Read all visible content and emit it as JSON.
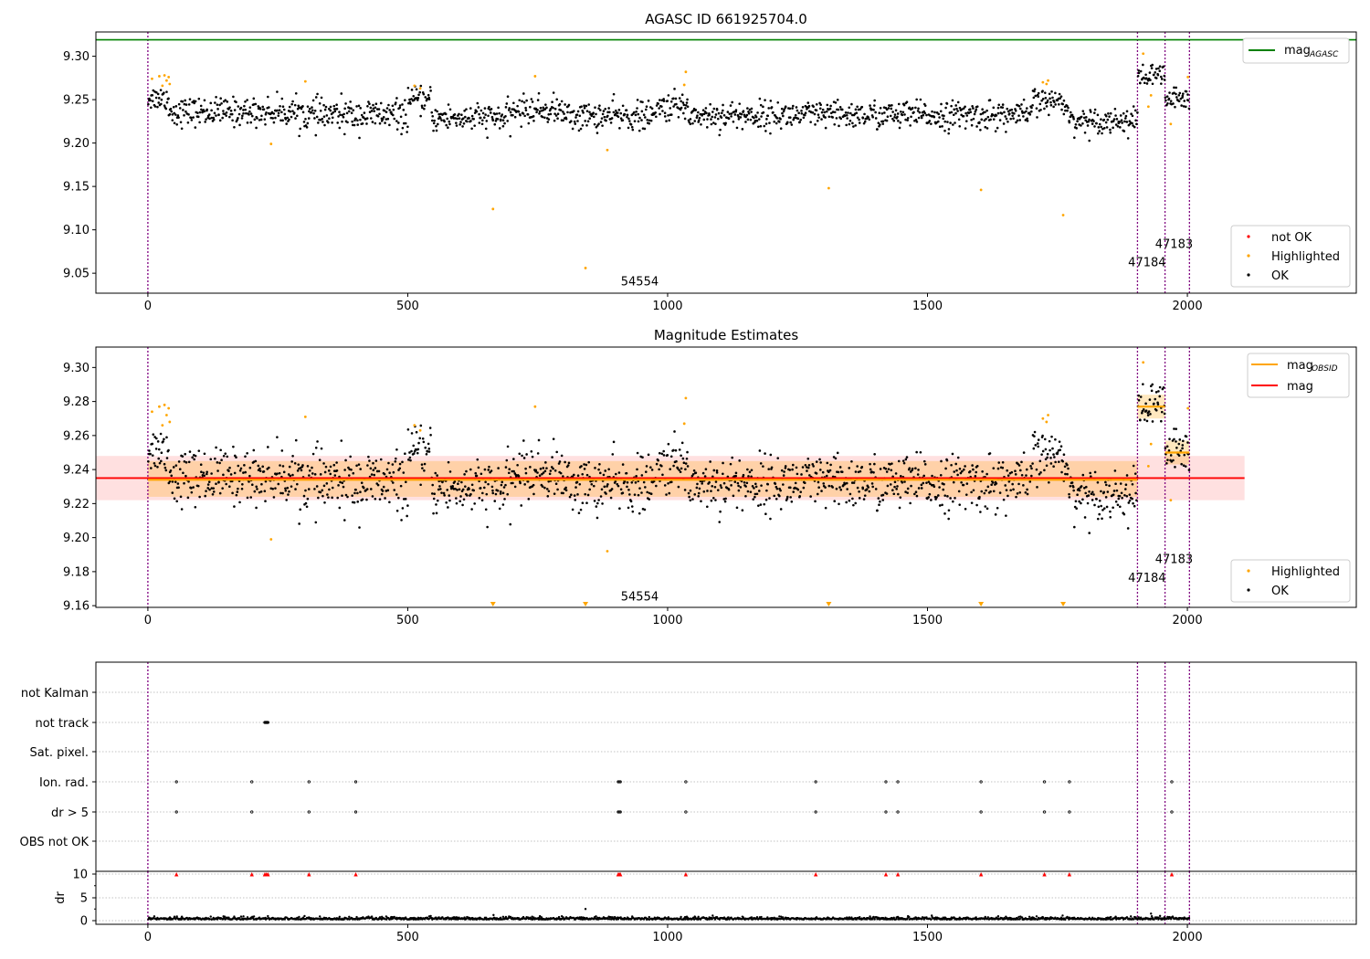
{
  "chart_data": [
    {
      "id": "panel-agasc",
      "type": "scatter",
      "title": "AGASC ID 661925704.0",
      "xlim": [
        -100,
        2325
      ],
      "ylim": [
        9.027,
        9.328
      ],
      "xticks": [
        0,
        500,
        1000,
        1500,
        2000
      ],
      "yticks": [
        9.05,
        9.1,
        9.15,
        9.2,
        9.25,
        9.3
      ],
      "ytick_labels": [
        "9.05",
        "9.10",
        "9.15",
        "9.20",
        "9.25",
        "9.30"
      ],
      "vlines": [
        0,
        1904,
        1957,
        2004
      ],
      "hline": {
        "y": 9.319,
        "color": "#008000",
        "legend": "mag",
        "legend_sub": "AGASC"
      },
      "annotations": [
        {
          "text": "54554",
          "x": 910,
          "y": 9.036
        },
        {
          "text": "47184",
          "x": 1886,
          "y": 9.058
        },
        {
          "text": "47183",
          "x": 1938,
          "y": 9.079
        }
      ],
      "legend": [
        {
          "label": "not OK",
          "color": "#ff0000"
        },
        {
          "label": "Highlighted",
          "color": "#ffa500"
        },
        {
          "label": "OK",
          "color": "#000000"
        }
      ],
      "segments": [
        {
          "x0": 0,
          "x1": 40,
          "mean": 9.252,
          "sd": 0.007
        },
        {
          "x0": 40,
          "x1": 300,
          "mean": 9.236,
          "sd": 0.008
        },
        {
          "x0": 300,
          "x1": 500,
          "mean": 9.232,
          "sd": 0.009
        },
        {
          "x0": 500,
          "x1": 545,
          "mean": 9.249,
          "sd": 0.007
        },
        {
          "x0": 545,
          "x1": 700,
          "mean": 9.229,
          "sd": 0.008
        },
        {
          "x0": 700,
          "x1": 800,
          "mean": 9.238,
          "sd": 0.008
        },
        {
          "x0": 800,
          "x1": 980,
          "mean": 9.231,
          "sd": 0.008
        },
        {
          "x0": 980,
          "x1": 1040,
          "mean": 9.242,
          "sd": 0.008
        },
        {
          "x0": 1040,
          "x1": 1700,
          "mean": 9.232,
          "sd": 0.008
        },
        {
          "x0": 1700,
          "x1": 1770,
          "mean": 9.248,
          "sd": 0.007
        },
        {
          "x0": 1770,
          "x1": 1904,
          "mean": 9.226,
          "sd": 0.007
        },
        {
          "x0": 1904,
          "x1": 1957,
          "mean": 9.277,
          "sd": 0.007
        },
        {
          "x0": 1957,
          "x1": 2004,
          "mean": 9.25,
          "sd": 0.007
        }
      ],
      "n_points": 1600,
      "highlighted": [
        [
          8,
          9.274
        ],
        [
          22,
          9.277
        ],
        [
          28,
          9.266
        ],
        [
          32,
          9.278
        ],
        [
          36,
          9.272
        ],
        [
          40,
          9.276
        ],
        [
          42,
          9.268
        ],
        [
          237,
          9.199
        ],
        [
          303,
          9.271
        ],
        [
          513,
          9.266
        ],
        [
          524,
          9.263
        ],
        [
          664,
          9.124
        ],
        [
          745,
          9.277
        ],
        [
          842,
          9.056
        ],
        [
          884,
          9.192
        ],
        [
          1032,
          9.267
        ],
        [
          1035,
          9.282
        ],
        [
          1310,
          9.148
        ],
        [
          1603,
          9.146
        ],
        [
          1722,
          9.27
        ],
        [
          1729,
          9.268
        ],
        [
          1732,
          9.272
        ],
        [
          1761,
          9.117
        ],
        [
          1915,
          9.303
        ],
        [
          1925,
          9.242
        ],
        [
          1930,
          9.255
        ],
        [
          1968,
          9.222
        ],
        [
          2001,
          9.276
        ]
      ]
    },
    {
      "id": "panel-estimates",
      "type": "scatter",
      "title": "Magnitude Estimates",
      "xlim": [
        -100,
        2325
      ],
      "ylim": [
        9.159,
        9.312
      ],
      "xticks": [
        0,
        500,
        1000,
        1500,
        2000
      ],
      "yticks": [
        9.16,
        9.18,
        9.2,
        9.22,
        9.24,
        9.26,
        9.28,
        9.3
      ],
      "ytick_labels": [
        "9.16",
        "9.18",
        "9.20",
        "9.22",
        "9.24",
        "9.26",
        "9.28",
        "9.30"
      ],
      "vlines": [
        0,
        1904,
        1957,
        2004
      ],
      "mag": {
        "value": 9.235,
        "band": [
          9.222,
          9.248
        ],
        "x0": -100,
        "x1": 2110,
        "color": "#ff0000"
      },
      "mag_obsid": [
        {
          "x0": 0,
          "x1": 1904,
          "value": 9.234,
          "band": [
            9.224,
            9.245
          ]
        },
        {
          "x0": 1904,
          "x1": 1957,
          "value": 9.277,
          "band": [
            9.27,
            9.284
          ]
        },
        {
          "x0": 1957,
          "x1": 2004,
          "value": 9.25,
          "band": [
            9.243,
            9.257
          ]
        }
      ],
      "low_markers_x": [
        664,
        842,
        1310,
        1603,
        1761
      ],
      "annotations": [
        {
          "text": "54554",
          "x": 910,
          "y": 9.163
        },
        {
          "text": "47184",
          "x": 1886,
          "y": 9.174
        },
        {
          "text": "47183",
          "x": 1938,
          "y": 9.185
        }
      ],
      "legend": [
        {
          "label": "mag",
          "sub": "OBSID",
          "color": "#ffa500",
          "kind": "line"
        },
        {
          "label": "mag",
          "sub": "",
          "color": "#ff0000",
          "kind": "line"
        }
      ],
      "legend2": [
        {
          "label": "Highlighted",
          "color": "#ffa500"
        },
        {
          "label": "OK",
          "color": "#000000"
        }
      ]
    },
    {
      "id": "panel-flags",
      "type": "scatter",
      "xlim": [
        -100,
        2325
      ],
      "categories": [
        "not Kalman",
        "not track",
        "Sat. pixel.",
        "Ion. rad.",
        "dr > 5",
        "OBS not OK"
      ],
      "vlines": [
        0,
        1904,
        1957,
        2004
      ],
      "flag_points": {
        "not track": [
          225,
          226,
          227,
          228,
          229,
          230,
          231
        ],
        "Ion. rad.": [
          55,
          200,
          310,
          400,
          905,
          907,
          909,
          1035,
          1285,
          1420,
          1443,
          1603,
          1725,
          1773,
          1970
        ],
        "dr > 5": [
          55,
          200,
          310,
          400,
          905,
          907,
          909,
          1035,
          1285,
          1420,
          1443,
          1603,
          1725,
          1773,
          1970
        ]
      }
    },
    {
      "id": "panel-dr",
      "type": "scatter",
      "ylabel": "dr",
      "xlim": [
        -100,
        2325
      ],
      "ylim": [
        -1,
        10.5
      ],
      "xticks": [
        0,
        500,
        1000,
        1500,
        2000
      ],
      "yticks": [
        0,
        5,
        10
      ],
      "ytick_labels": [
        "0",
        "5",
        "10"
      ],
      "vlines": [
        0,
        1904,
        1957,
        2004
      ],
      "clipped_x": [
        55,
        200,
        225,
        228,
        231,
        310,
        400,
        905,
        907,
        909,
        1035,
        1285,
        1420,
        1443,
        1603,
        1725,
        1773,
        1970
      ],
      "outliers": [
        [
          665,
          1.2
        ],
        [
          842,
          2.5
        ],
        [
          1760,
          1.1
        ],
        [
          1930,
          1.5
        ]
      ]
    }
  ]
}
